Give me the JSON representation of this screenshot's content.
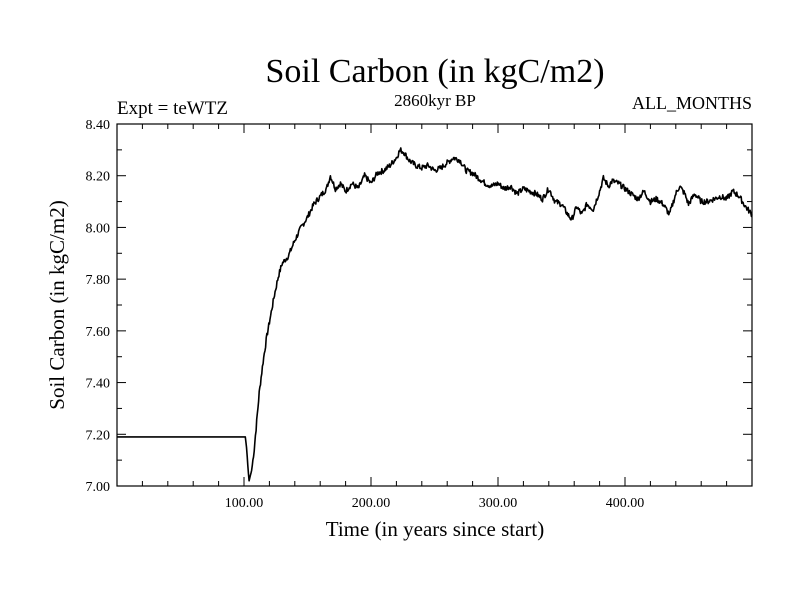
{
  "chart_data": {
    "type": "line",
    "title": "Soil Carbon (in kgC/m2)",
    "subtitle_left": "Expt = teWTZ",
    "subtitle_center": "2860kyr BP",
    "subtitle_right": "ALL_MONTHS",
    "xlabel": "Time (in years since start)",
    "ylabel": "Soil Carbon (in kgC/m2)",
    "xlim": [
      0,
      500
    ],
    "ylim": [
      7.0,
      8.4
    ],
    "x_ticks": [
      100,
      200,
      300,
      400
    ],
    "x_tick_labels": [
      "100.00",
      "200.00",
      "300.00",
      "400.00"
    ],
    "y_ticks": [
      7.0,
      7.2,
      7.4,
      7.6,
      7.8,
      8.0,
      8.2,
      8.4
    ],
    "y_tick_labels": [
      "7.00",
      "7.20",
      "7.40",
      "7.60",
      "7.80",
      "8.00",
      "8.20",
      "8.40"
    ],
    "series": [
      {
        "name": "Soil Carbon",
        "x": [
          0,
          101,
          102,
          103,
          104,
          106,
          108,
          110,
          112,
          115,
          118,
          121,
          124,
          127,
          130,
          135,
          140,
          145,
          150,
          155,
          160,
          165,
          168,
          172,
          176,
          180,
          185,
          190,
          195,
          200,
          205,
          210,
          215,
          220,
          223,
          226,
          230,
          235,
          240,
          245,
          250,
          255,
          260,
          265,
          270,
          275,
          280,
          285,
          290,
          295,
          300,
          305,
          310,
          315,
          320,
          325,
          330,
          335,
          340,
          345,
          350,
          355,
          358,
          362,
          366,
          370,
          375,
          380,
          383,
          387,
          390,
          395,
          400,
          405,
          410,
          415,
          420,
          425,
          430,
          435,
          440,
          443,
          447,
          450,
          455,
          460,
          465,
          470,
          475,
          480,
          485,
          490,
          495,
          500
        ],
        "y": [
          7.19,
          7.19,
          7.15,
          7.08,
          7.02,
          7.06,
          7.14,
          7.25,
          7.36,
          7.48,
          7.58,
          7.66,
          7.74,
          7.81,
          7.86,
          7.89,
          7.95,
          8.0,
          8.04,
          8.09,
          8.12,
          8.15,
          8.2,
          8.15,
          8.17,
          8.14,
          8.17,
          8.15,
          8.2,
          8.17,
          8.21,
          8.22,
          8.24,
          8.27,
          8.3,
          8.29,
          8.26,
          8.24,
          8.23,
          8.24,
          8.22,
          8.23,
          8.25,
          8.27,
          8.26,
          8.22,
          8.21,
          8.19,
          8.17,
          8.16,
          8.17,
          8.15,
          8.16,
          8.13,
          8.15,
          8.14,
          8.13,
          8.11,
          8.15,
          8.1,
          8.09,
          8.05,
          8.03,
          8.08,
          8.05,
          8.09,
          8.07,
          8.14,
          8.19,
          8.16,
          8.18,
          8.17,
          8.15,
          8.13,
          8.11,
          8.14,
          8.1,
          8.11,
          8.09,
          8.05,
          8.13,
          8.16,
          8.13,
          8.09,
          8.13,
          8.1,
          8.1,
          8.11,
          8.12,
          8.11,
          8.14,
          8.12,
          8.08,
          8.05
        ]
      }
    ]
  }
}
